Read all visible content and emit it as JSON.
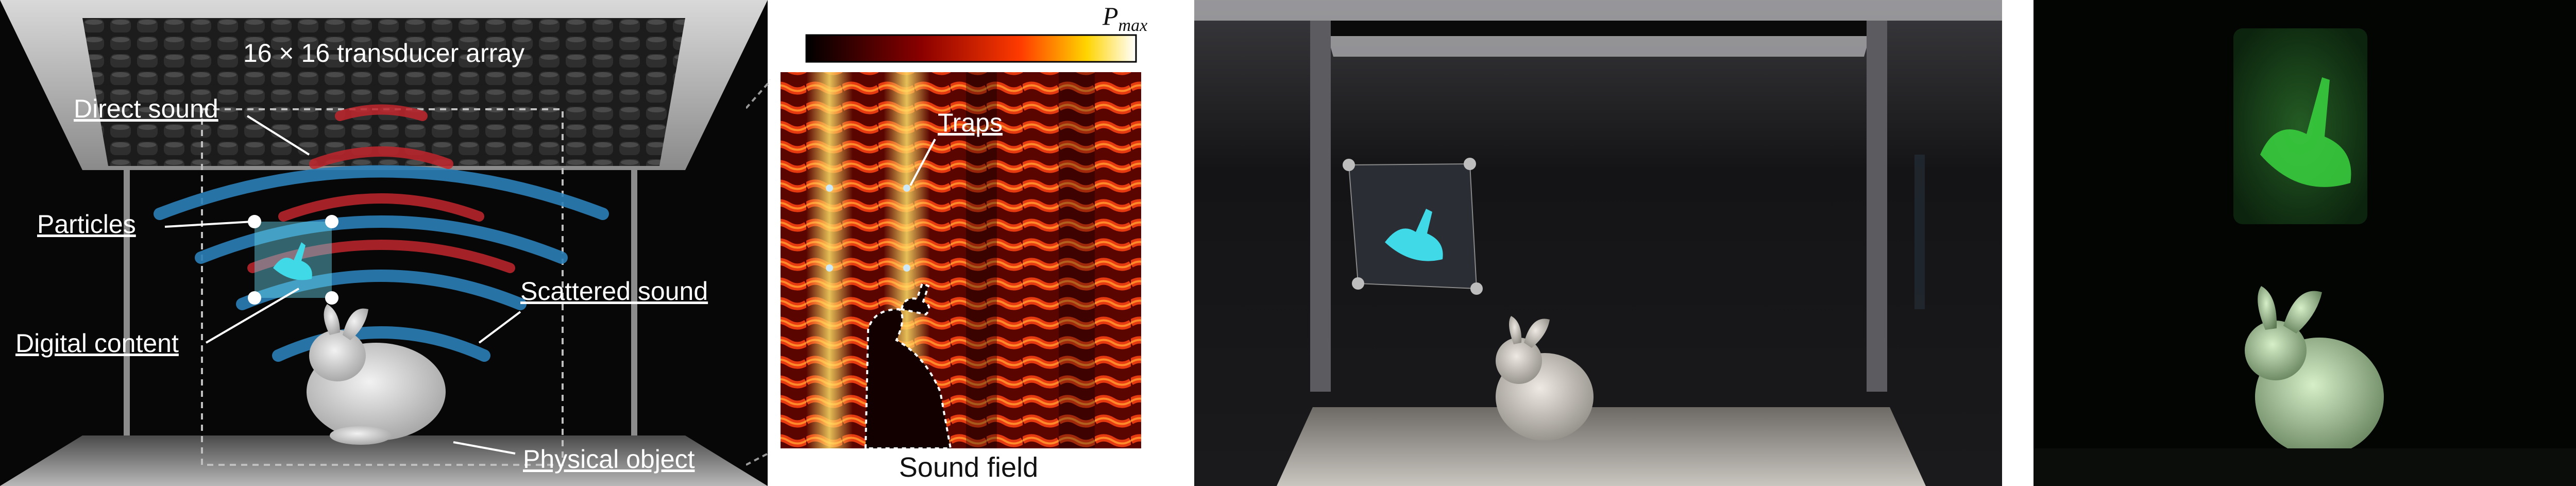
{
  "panel_a": {
    "array_label": "16 × 16 transducer array",
    "callouts": {
      "direct_sound": "Direct sound",
      "particles": "Particles",
      "digital_content": "Digital content",
      "scattered_sound": "Scattered sound",
      "physical_object": "Physical object"
    }
  },
  "panel_b": {
    "colorbar_max_label": "P",
    "colorbar_max_subscript": "max",
    "traps_label": "Traps",
    "caption": "Sound field"
  },
  "colors": {
    "direct_wave": "#c0272d",
    "scattered_wave": "#2b7fb8",
    "content": "#3fd9e8",
    "hologram": "#39d43f"
  }
}
